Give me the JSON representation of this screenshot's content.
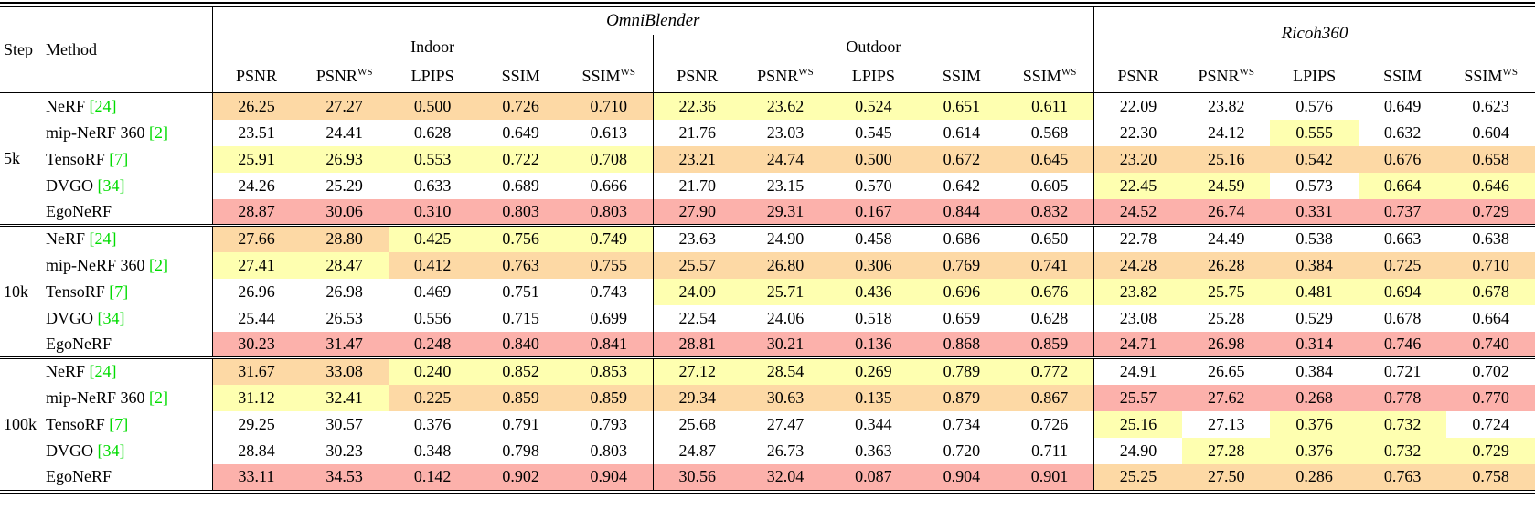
{
  "table": {
    "header": {
      "step": "Step",
      "method": "Method",
      "groups": [
        {
          "label": "OmniBlender",
          "subgroups": [
            "Indoor",
            "Outdoor"
          ]
        },
        {
          "label": "Ricoh360"
        }
      ],
      "metrics": [
        {
          "base": "PSNR",
          "sup": ""
        },
        {
          "base": "PSNR",
          "sup": "WS"
        },
        {
          "base": "LPIPS",
          "sup": ""
        },
        {
          "base": "SSIM",
          "sup": ""
        },
        {
          "base": "SSIM",
          "sup": "WS"
        }
      ]
    },
    "blocks": [
      {
        "step": "5k",
        "rows": [
          {
            "method": "NeRF",
            "cite": "[24]",
            "values": [
              "26.25",
              "27.27",
              "0.500",
              "0.726",
              "0.710",
              "22.36",
              "23.62",
              "0.524",
              "0.651",
              "0.611",
              "22.09",
              "23.82",
              "0.576",
              "0.649",
              "0.623"
            ],
            "colors": [
              "o",
              "o",
              "o",
              "o",
              "o",
              "y",
              "y",
              "y",
              "y",
              "y",
              "w",
              "w",
              "w",
              "w",
              "w"
            ]
          },
          {
            "method": "mip-NeRF 360",
            "cite": "[2]",
            "values": [
              "23.51",
              "24.41",
              "0.628",
              "0.649",
              "0.613",
              "21.76",
              "23.03",
              "0.545",
              "0.614",
              "0.568",
              "22.30",
              "24.12",
              "0.555",
              "0.632",
              "0.604"
            ],
            "colors": [
              "w",
              "w",
              "w",
              "w",
              "w",
              "w",
              "w",
              "w",
              "w",
              "w",
              "w",
              "w",
              "y",
              "w",
              "w"
            ]
          },
          {
            "method": "TensoRF",
            "cite": "[7]",
            "values": [
              "25.91",
              "26.93",
              "0.553",
              "0.722",
              "0.708",
              "23.21",
              "24.74",
              "0.500",
              "0.672",
              "0.645",
              "23.20",
              "25.16",
              "0.542",
              "0.676",
              "0.658"
            ],
            "colors": [
              "y",
              "y",
              "y",
              "y",
              "y",
              "o",
              "o",
              "o",
              "o",
              "o",
              "o",
              "o",
              "o",
              "o",
              "o"
            ]
          },
          {
            "method": "DVGO",
            "cite": "[34]",
            "values": [
              "24.26",
              "25.29",
              "0.633",
              "0.689",
              "0.666",
              "21.70",
              "23.15",
              "0.570",
              "0.642",
              "0.605",
              "22.45",
              "24.59",
              "0.573",
              "0.664",
              "0.646"
            ],
            "colors": [
              "w",
              "w",
              "w",
              "w",
              "w",
              "w",
              "w",
              "w",
              "w",
              "w",
              "y",
              "y",
              "w",
              "y",
              "y"
            ]
          },
          {
            "method": "EgoNeRF",
            "cite": "",
            "values": [
              "28.87",
              "30.06",
              "0.310",
              "0.803",
              "0.803",
              "27.90",
              "29.31",
              "0.167",
              "0.844",
              "0.832",
              "24.52",
              "26.74",
              "0.331",
              "0.737",
              "0.729"
            ],
            "colors": [
              "r",
              "r",
              "r",
              "r",
              "r",
              "r",
              "r",
              "r",
              "r",
              "r",
              "r",
              "r",
              "r",
              "r",
              "r"
            ]
          }
        ]
      },
      {
        "step": "10k",
        "rows": [
          {
            "method": "NeRF",
            "cite": "[24]",
            "values": [
              "27.66",
              "28.80",
              "0.425",
              "0.756",
              "0.749",
              "23.63",
              "24.90",
              "0.458",
              "0.686",
              "0.650",
              "22.78",
              "24.49",
              "0.538",
              "0.663",
              "0.638"
            ],
            "colors": [
              "o",
              "o",
              "y",
              "y",
              "y",
              "w",
              "w",
              "w",
              "w",
              "w",
              "w",
              "w",
              "w",
              "w",
              "w"
            ]
          },
          {
            "method": "mip-NeRF 360",
            "cite": "[2]",
            "values": [
              "27.41",
              "28.47",
              "0.412",
              "0.763",
              "0.755",
              "25.57",
              "26.80",
              "0.306",
              "0.769",
              "0.741",
              "24.28",
              "26.28",
              "0.384",
              "0.725",
              "0.710"
            ],
            "colors": [
              "y",
              "y",
              "o",
              "o",
              "o",
              "o",
              "o",
              "o",
              "o",
              "o",
              "o",
              "o",
              "o",
              "o",
              "o"
            ]
          },
          {
            "method": "TensoRF",
            "cite": "[7]",
            "values": [
              "26.96",
              "26.98",
              "0.469",
              "0.751",
              "0.743",
              "24.09",
              "25.71",
              "0.436",
              "0.696",
              "0.676",
              "23.82",
              "25.75",
              "0.481",
              "0.694",
              "0.678"
            ],
            "colors": [
              "w",
              "w",
              "w",
              "w",
              "w",
              "y",
              "y",
              "y",
              "y",
              "y",
              "y",
              "y",
              "y",
              "y",
              "y"
            ]
          },
          {
            "method": "DVGO",
            "cite": "[34]",
            "values": [
              "25.44",
              "26.53",
              "0.556",
              "0.715",
              "0.699",
              "22.54",
              "24.06",
              "0.518",
              "0.659",
              "0.628",
              "23.08",
              "25.28",
              "0.529",
              "0.678",
              "0.664"
            ],
            "colors": [
              "w",
              "w",
              "w",
              "w",
              "w",
              "w",
              "w",
              "w",
              "w",
              "w",
              "w",
              "w",
              "w",
              "w",
              "w"
            ]
          },
          {
            "method": "EgoNeRF",
            "cite": "",
            "values": [
              "30.23",
              "31.47",
              "0.248",
              "0.840",
              "0.841",
              "28.81",
              "30.21",
              "0.136",
              "0.868",
              "0.859",
              "24.71",
              "26.98",
              "0.314",
              "0.746",
              "0.740"
            ],
            "colors": [
              "r",
              "r",
              "r",
              "r",
              "r",
              "r",
              "r",
              "r",
              "r",
              "r",
              "r",
              "r",
              "r",
              "r",
              "r"
            ]
          }
        ]
      },
      {
        "step": "100k",
        "rows": [
          {
            "method": "NeRF",
            "cite": "[24]",
            "values": [
              "31.67",
              "33.08",
              "0.240",
              "0.852",
              "0.853",
              "27.12",
              "28.54",
              "0.269",
              "0.789",
              "0.772",
              "24.91",
              "26.65",
              "0.384",
              "0.721",
              "0.702"
            ],
            "colors": [
              "o",
              "o",
              "y",
              "y",
              "y",
              "y",
              "y",
              "y",
              "y",
              "y",
              "w",
              "w",
              "w",
              "w",
              "w"
            ]
          },
          {
            "method": "mip-NeRF 360",
            "cite": "[2]",
            "values": [
              "31.12",
              "32.41",
              "0.225",
              "0.859",
              "0.859",
              "29.34",
              "30.63",
              "0.135",
              "0.879",
              "0.867",
              "25.57",
              "27.62",
              "0.268",
              "0.778",
              "0.770"
            ],
            "colors": [
              "y",
              "y",
              "o",
              "o",
              "o",
              "o",
              "o",
              "o",
              "o",
              "o",
              "r",
              "r",
              "r",
              "r",
              "r"
            ]
          },
          {
            "method": "TensoRF",
            "cite": "[7]",
            "values": [
              "29.25",
              "30.57",
              "0.376",
              "0.791",
              "0.793",
              "25.68",
              "27.47",
              "0.344",
              "0.734",
              "0.726",
              "25.16",
              "27.13",
              "0.376",
              "0.732",
              "0.724"
            ],
            "colors": [
              "w",
              "w",
              "w",
              "w",
              "w",
              "w",
              "w",
              "w",
              "w",
              "w",
              "y",
              "w",
              "y",
              "y",
              "w"
            ]
          },
          {
            "method": "DVGO",
            "cite": "[34]",
            "values": [
              "28.84",
              "30.23",
              "0.348",
              "0.798",
              "0.803",
              "24.87",
              "26.73",
              "0.363",
              "0.720",
              "0.711",
              "24.90",
              "27.28",
              "0.376",
              "0.732",
              "0.729"
            ],
            "colors": [
              "w",
              "w",
              "w",
              "w",
              "w",
              "w",
              "w",
              "w",
              "w",
              "w",
              "w",
              "y",
              "y",
              "y",
              "y"
            ]
          },
          {
            "method": "EgoNeRF",
            "cite": "",
            "values": [
              "33.11",
              "34.53",
              "0.142",
              "0.902",
              "0.904",
              "30.56",
              "32.04",
              "0.087",
              "0.904",
              "0.901",
              "25.25",
              "27.50",
              "0.286",
              "0.763",
              "0.758"
            ],
            "colors": [
              "r",
              "r",
              "r",
              "r",
              "r",
              "r",
              "r",
              "r",
              "r",
              "r",
              "o",
              "o",
              "o",
              "o",
              "o"
            ]
          }
        ]
      }
    ]
  },
  "colors": {
    "r": "#fcb1ab",
    "o": "#fdd9a5",
    "y": "#feffb0",
    "w": "transparent",
    "cite": "#00dc00"
  }
}
